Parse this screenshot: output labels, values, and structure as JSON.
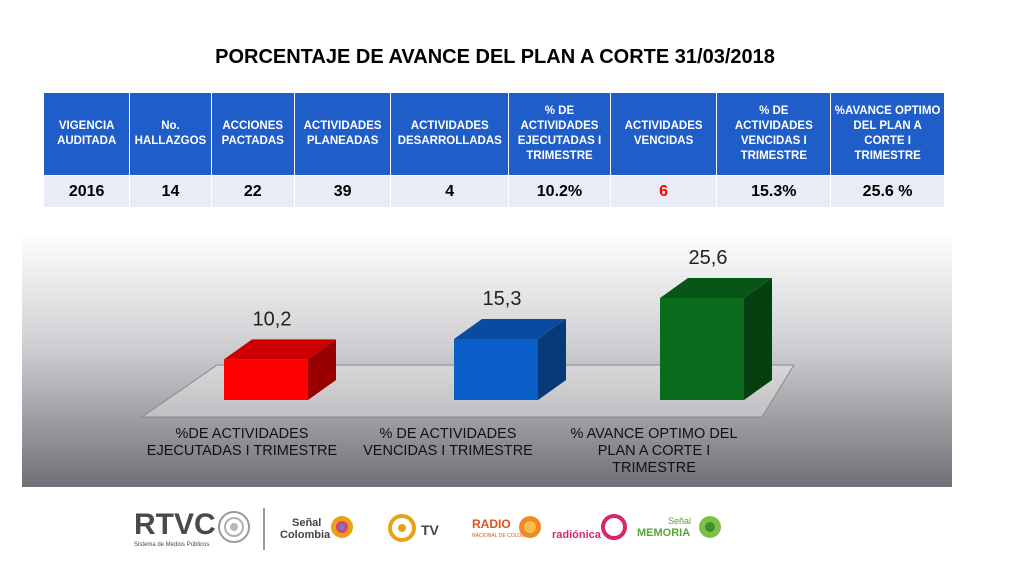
{
  "title": "PORCENTAJE  DE AVANCE DEL PLAN A CORTE 31/03/2018",
  "table": {
    "headers": [
      "VIGENCIA AUDITADA",
      "No. HALLAZGOS",
      "ACCIONES PACTADAS",
      "ACTIVIDADES PLANEADAS",
      "ACTIVIDADES DESARROLLADAS",
      "% DE ACTIVIDADES EJECUTADAS I TRIMESTRE",
      "ACTIVIDADES VENCIDAS",
      "% DE ACTIVIDADES VENCIDAS I TRIMESTRE",
      "%AVANCE OPTIMO DEL PLAN A CORTE I TRIMESTRE"
    ],
    "row": [
      "2016",
      "14",
      "22",
      "39",
      "4",
      "10.2%",
      "6",
      "15.3%",
      "25.6 %"
    ]
  },
  "chart_data": {
    "type": "bar",
    "categories": [
      "%DE ACTIVIDADES EJECUTADAS I TRIMESTRE",
      "% DE ACTIVIDADES VENCIDAS I TRIMESTRE",
      "% AVANCE  OPTIMO DEL PLAN A CORTE I TRIMESTRE"
    ],
    "values": [
      10.2,
      15.3,
      25.6
    ],
    "data_labels": [
      "10,2",
      "15,3",
      "25,6"
    ],
    "colors": [
      "#ff0000",
      "#0b5ec8",
      "#0a6b1c"
    ],
    "ylim": [
      0,
      25.6
    ],
    "grid": false,
    "style": "3d"
  },
  "footer": {
    "rtvc": "RTVC",
    "rtvc_sub": "Sistema de Medios Públicos",
    "senal": "Señal",
    "colombia": "Colombia",
    "tv": "TV",
    "radio": "RADIO",
    "radio_sub": "NACIONAL DE COLOMBIA",
    "radionica": "radiónica",
    "memoria_senal": "Señal",
    "memoria": "MEMORIA"
  }
}
